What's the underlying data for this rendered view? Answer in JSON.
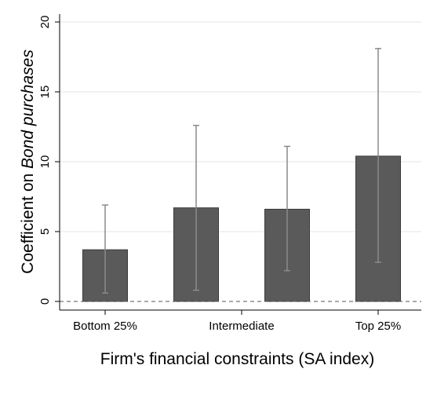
{
  "chart_data": {
    "type": "bar",
    "title": "",
    "xlabel": "Firm's financial constraints (SA index)",
    "ylabel": {
      "prefix": "Coefficient on ",
      "emphasis": "Bond purchases"
    },
    "categories": [
      "Bottom 25%",
      "Intermediate",
      "Top 25%"
    ],
    "bars": [
      {
        "category": "Bottom 25%",
        "value": 3.7,
        "ci_low": 0.6,
        "ci_high": 6.9,
        "x": 0
      },
      {
        "category": "Intermediate",
        "value": 6.7,
        "ci_low": 0.8,
        "ci_high": 12.6,
        "x": 1
      },
      {
        "category": "Intermediate",
        "value": 6.6,
        "ci_low": 2.2,
        "ci_high": 11.1,
        "x": 2
      },
      {
        "category": "Top 25%",
        "value": 10.4,
        "ci_low": 2.8,
        "ci_high": 18.1,
        "x": 3
      }
    ],
    "category_ticks": [
      {
        "label": "Bottom 25%",
        "x": 0
      },
      {
        "label": "Intermediate",
        "x": 1.5
      },
      {
        "label": "Top 25%",
        "x": 3
      }
    ],
    "ylim": [
      0,
      20
    ],
    "yticks": [
      0,
      5,
      10,
      15,
      20
    ],
    "reference_line": 0,
    "grid": "horizontal",
    "bar_color": "#5a5a5a",
    "error_bar_color": "#8a8a8a",
    "grid_color": "#e6e6e6"
  }
}
